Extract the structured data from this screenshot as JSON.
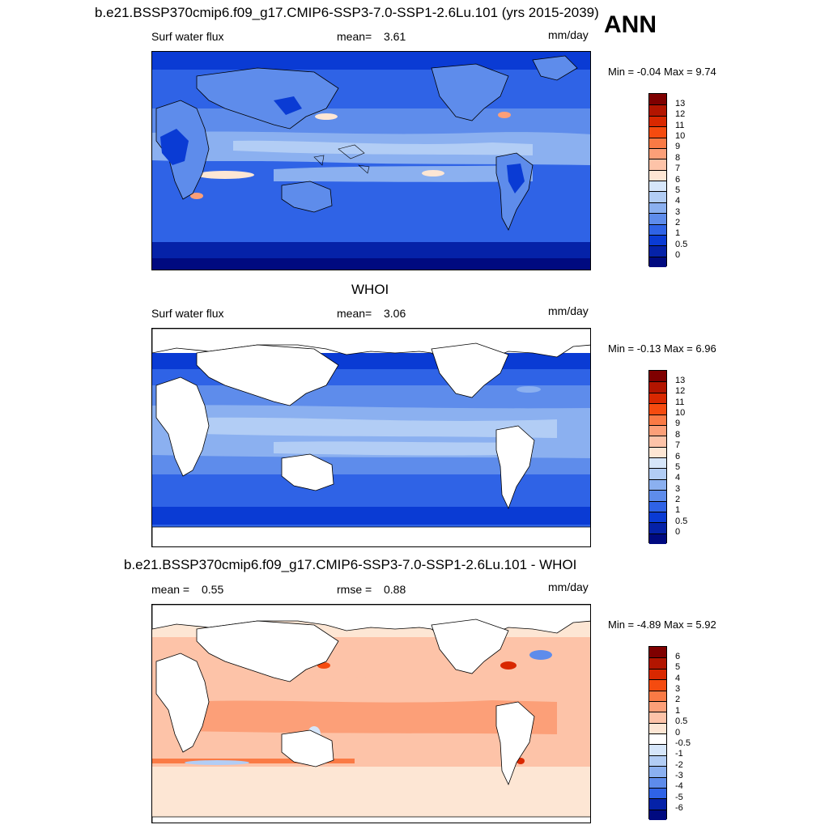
{
  "annual_tag": "ANN",
  "panels": [
    {
      "title": "b.e21.BSSP370cmip6.f09_g17.CMIP6-SSP3-7.0-SSP1-2.6Lu.101 (yrs 2015-2039)",
      "variable": "Surf water flux",
      "stat1_label": "mean=",
      "stat1_value": "3.61",
      "units": "mm/day",
      "range_text": "Min =  -0.04 Max =   9.74",
      "colorbar": {
        "labels": [
          "13",
          "12",
          "11",
          "10",
          "9",
          "8",
          "7",
          "6",
          "5",
          "4",
          "3",
          "2",
          "1",
          "0.5",
          "0"
        ],
        "colors": [
          "#7f0000",
          "#b31500",
          "#d92800",
          "#f54b0f",
          "#fa7a45",
          "#fc9f78",
          "#fdc3a8",
          "#fde6d4",
          "#d6e6fa",
          "#b2cdf5",
          "#8bb0f0",
          "#5e8ceb",
          "#2f63e6",
          "#0a3bd4",
          "#0522a8",
          "#000a80"
        ]
      }
    },
    {
      "title": "WHOI",
      "variable": "Surf water flux",
      "stat1_label": "mean=",
      "stat1_value": "3.06",
      "units": "mm/day",
      "range_text": "Min =  -0.13 Max =   6.96",
      "colorbar": {
        "labels": [
          "13",
          "12",
          "11",
          "10",
          "9",
          "8",
          "7",
          "6",
          "5",
          "4",
          "3",
          "2",
          "1",
          "0.5",
          "0"
        ],
        "colors": [
          "#7f0000",
          "#b31500",
          "#d92800",
          "#f54b0f",
          "#fa7a45",
          "#fc9f78",
          "#fdc3a8",
          "#fde6d4",
          "#d6e6fa",
          "#b2cdf5",
          "#8bb0f0",
          "#5e8ceb",
          "#2f63e6",
          "#0a3bd4",
          "#0522a8",
          "#000a80"
        ]
      }
    },
    {
      "title": "b.e21.BSSP370cmip6.f09_g17.CMIP6-SSP3-7.0-SSP1-2.6Lu.101 - WHOI",
      "stat1_label": "mean =",
      "stat1_value": "0.55",
      "stat2_label": "rmse =",
      "stat2_value": "0.88",
      "units": "mm/day",
      "range_text": "Min =  -4.89 Max =   5.92",
      "colorbar": {
        "labels": [
          "6",
          "5",
          "4",
          "3",
          "2",
          "1",
          "0.5",
          "0",
          "-0.5",
          "-1",
          "-2",
          "-3",
          "-4",
          "-5",
          "-6"
        ],
        "colors": [
          "#7f0000",
          "#b31500",
          "#d92800",
          "#f54b0f",
          "#fa7a45",
          "#fc9f78",
          "#fdc3a8",
          "#fde6d4",
          "#ffffff",
          "#d6e6fa",
          "#b2cdf5",
          "#8bb0f0",
          "#5e8ceb",
          "#2f63e6",
          "#0522a8",
          "#000a80"
        ]
      }
    }
  ]
}
